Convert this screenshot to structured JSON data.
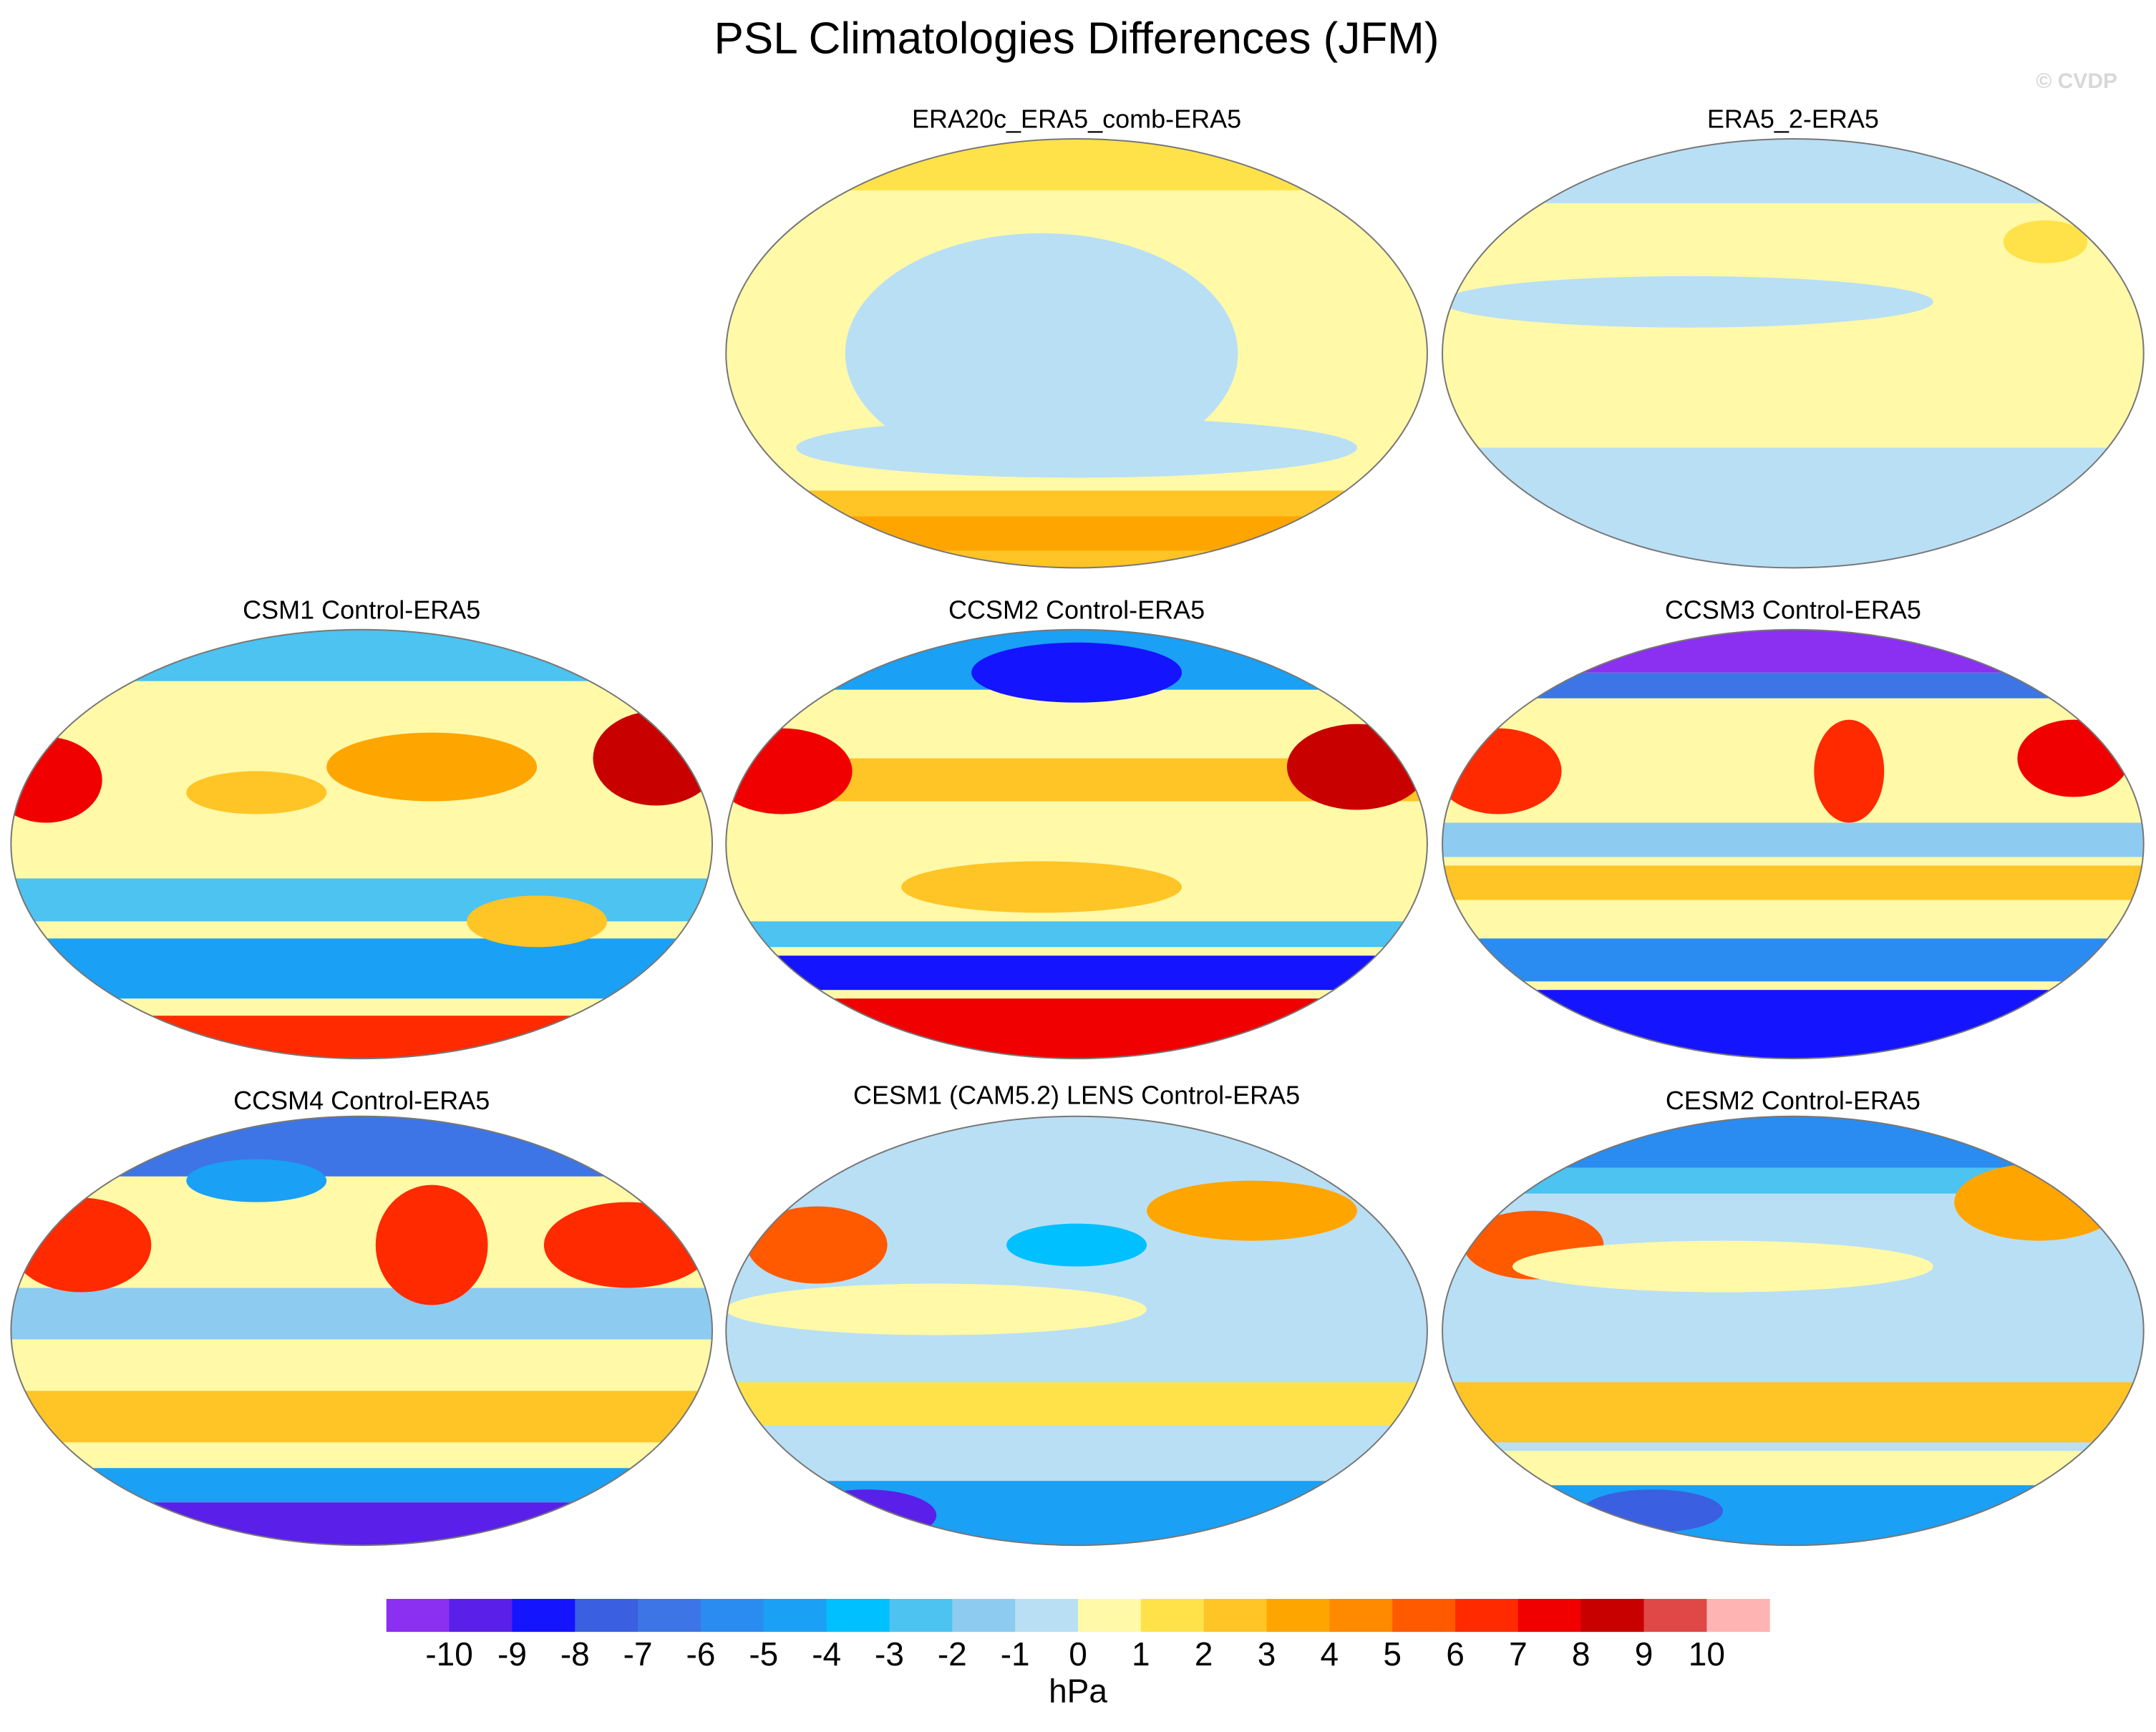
{
  "title": "PSL Climatologies Differences (JFM)",
  "watermark": "© CVDP",
  "panels": [
    {
      "title": "ERA20c_ERA5_comb-ERA5"
    },
    {
      "title": "ERA5_2-ERA5"
    },
    {
      "title": "CSM1 Control-ERA5"
    },
    {
      "title": "CCSM2 Control-ERA5"
    },
    {
      "title": "CCSM3 Control-ERA5"
    },
    {
      "title": "CCSM4 Control-ERA5"
    },
    {
      "title": "CESM1 (CAM5.2) LENS Control-ERA5"
    },
    {
      "title": "CESM2 Control-ERA5"
    }
  ],
  "colorbar": {
    "levels": [
      -10,
      -9,
      -8,
      -7,
      -6,
      -5,
      -4,
      -3,
      -2,
      -1,
      0,
      1,
      2,
      3,
      4,
      5,
      6,
      7,
      8,
      9,
      10
    ],
    "colors": [
      "#8b2ff0",
      "#5a1fe8",
      "#1414ff",
      "#3a5fe0",
      "#3d75e6",
      "#2a8cf0",
      "#1aa0f5",
      "#00c0ff",
      "#4cc3f0",
      "#8ecbf0",
      "#b9dff5",
      "#fff9a8",
      "#ffe24a",
      "#ffc425",
      "#ffa500",
      "#ff8a00",
      "#ff5a00",
      "#ff2a00",
      "#f00000",
      "#c80000",
      "#e04848",
      "#ffb4b4"
    ],
    "unit": "hPa"
  }
}
